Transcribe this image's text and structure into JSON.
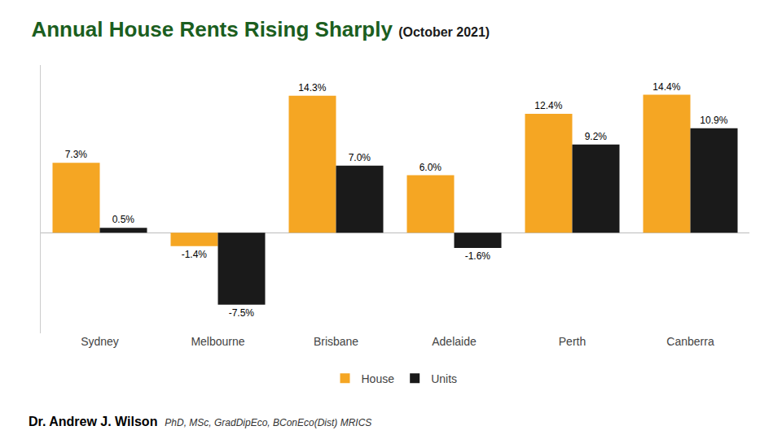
{
  "chart_data": {
    "type": "bar",
    "title": "Annual House Rents Rising Sharply",
    "subtitle": "(October 2021)",
    "categories": [
      "Sydney",
      "Melbourne",
      "Brisbane",
      "Adelaide",
      "Perth",
      "Canberra"
    ],
    "series": [
      {
        "name": "House",
        "color": "#F5A623",
        "values": [
          7.3,
          -1.4,
          14.3,
          6.0,
          12.4,
          14.4
        ],
        "value_labels": [
          "7.3%",
          "-1.4%",
          "14.3%",
          "6.0%",
          "12.4%",
          "14.4%"
        ]
      },
      {
        "name": "Units",
        "color": "#1A1A1A",
        "values": [
          0.5,
          -7.5,
          7.0,
          -1.6,
          9.2,
          10.9
        ],
        "value_labels": [
          "0.5%",
          "-7.5%",
          "7.0%",
          "-1.6%",
          "9.2%",
          "10.9%"
        ]
      }
    ],
    "ylim": [
      -10.5,
      17.5
    ],
    "grid": false,
    "legend": "bottom",
    "data_labels": true,
    "tick_labels": "x",
    "annotations": [
      "Dr. Andrew J. Wilson",
      "PhD, MSc, GradDipEco, BConEco(Dist) MRICS"
    ]
  }
}
